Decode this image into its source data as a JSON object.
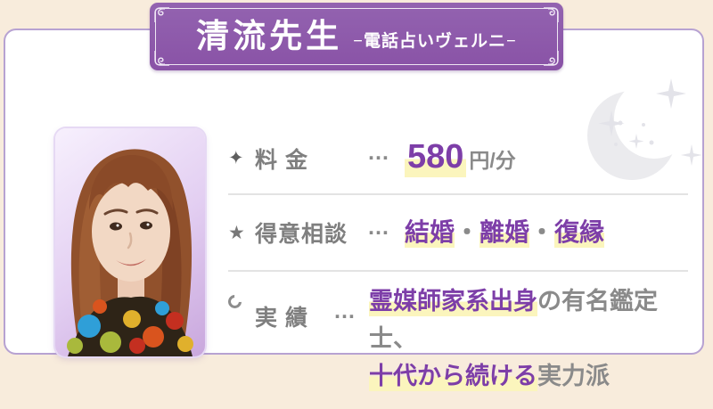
{
  "banner": {
    "title": "清流先生",
    "subtitle": "−電話占いヴェルニ−",
    "bg_color": "#8a57a8",
    "text_color": "#ffffff"
  },
  "photo": {
    "alt": "清流先生の写真"
  },
  "rows": [
    {
      "icon": "four-point-sparkle-icon",
      "glyph": "✦",
      "label": "料 金",
      "dots": "…",
      "value": "580",
      "unit": "円/分"
    },
    {
      "icon": "star-icon",
      "glyph": "★",
      "label": "得意相談",
      "dots": "…",
      "segments": [
        {
          "text": "結婚",
          "hl": true
        },
        {
          "text": "・",
          "hl": false
        },
        {
          "text": "離婚",
          "hl": true
        },
        {
          "text": "・",
          "hl": false
        },
        {
          "text": "復縁",
          "hl": true
        }
      ]
    },
    {
      "icon": "crescent-circle-icon",
      "label": "実 績",
      "dots": "…",
      "line1": [
        {
          "text": "霊媒師家系出身",
          "hl": true
        },
        {
          "text": "の",
          "hl": false
        },
        {
          "text": "有名鑑定士、",
          "hl": false
        }
      ],
      "line2": [
        {
          "text": "十代から続ける",
          "hl": true
        },
        {
          "text": "実力派",
          "hl": false
        }
      ]
    }
  ],
  "colors": {
    "page_bg": "#f8ecdc",
    "card_border": "#b7a2d2",
    "accent_purple": "#7d3ea8",
    "highlight_yellow": "#fbf5bd",
    "label_gray": "#7f7f7f",
    "divider_gray": "#e3e3e3"
  }
}
